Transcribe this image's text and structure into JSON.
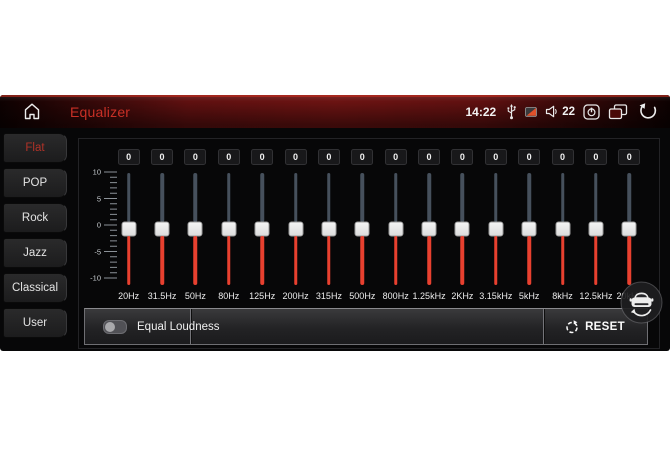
{
  "header": {
    "title": "Equalizer",
    "status": {
      "time": "14:22",
      "volume_level": "22"
    }
  },
  "sidebar": {
    "items": [
      {
        "label": "Flat",
        "selected": true
      },
      {
        "label": "POP",
        "selected": false
      },
      {
        "label": "Rock",
        "selected": false
      },
      {
        "label": "Jazz",
        "selected": false
      },
      {
        "label": "Classical",
        "selected": false
      },
      {
        "label": "User",
        "selected": false
      }
    ]
  },
  "equalizer": {
    "scale_labels": [
      "10",
      "5",
      "0",
      "-5",
      "-10"
    ],
    "scale_range": [
      -10,
      10
    ],
    "bands": [
      {
        "freq": "20Hz",
        "value": "0"
      },
      {
        "freq": "31.5Hz",
        "value": "0"
      },
      {
        "freq": "50Hz",
        "value": "0"
      },
      {
        "freq": "80Hz",
        "value": "0"
      },
      {
        "freq": "125Hz",
        "value": "0"
      },
      {
        "freq": "200Hz",
        "value": "0"
      },
      {
        "freq": "315Hz",
        "value": "0"
      },
      {
        "freq": "500Hz",
        "value": "0"
      },
      {
        "freq": "800Hz",
        "value": "0"
      },
      {
        "freq": "1.25kHz",
        "value": "0"
      },
      {
        "freq": "2KHz",
        "value": "0"
      },
      {
        "freq": "3.15kHz",
        "value": "0"
      },
      {
        "freq": "5kHz",
        "value": "0"
      },
      {
        "freq": "8kHz",
        "value": "0"
      },
      {
        "freq": "12.5kHz",
        "value": "0"
      },
      {
        "freq": "20kHz",
        "value": "0"
      }
    ]
  },
  "footer": {
    "equal_loudness_label": "Equal Loudness",
    "equal_loudness_state": "off",
    "reset_label": "RESET"
  },
  "colors": {
    "accent_red": "#c93026",
    "slider_red": "#e8402f",
    "slider_track": "#46505c",
    "header_red": "#6b1312"
  }
}
